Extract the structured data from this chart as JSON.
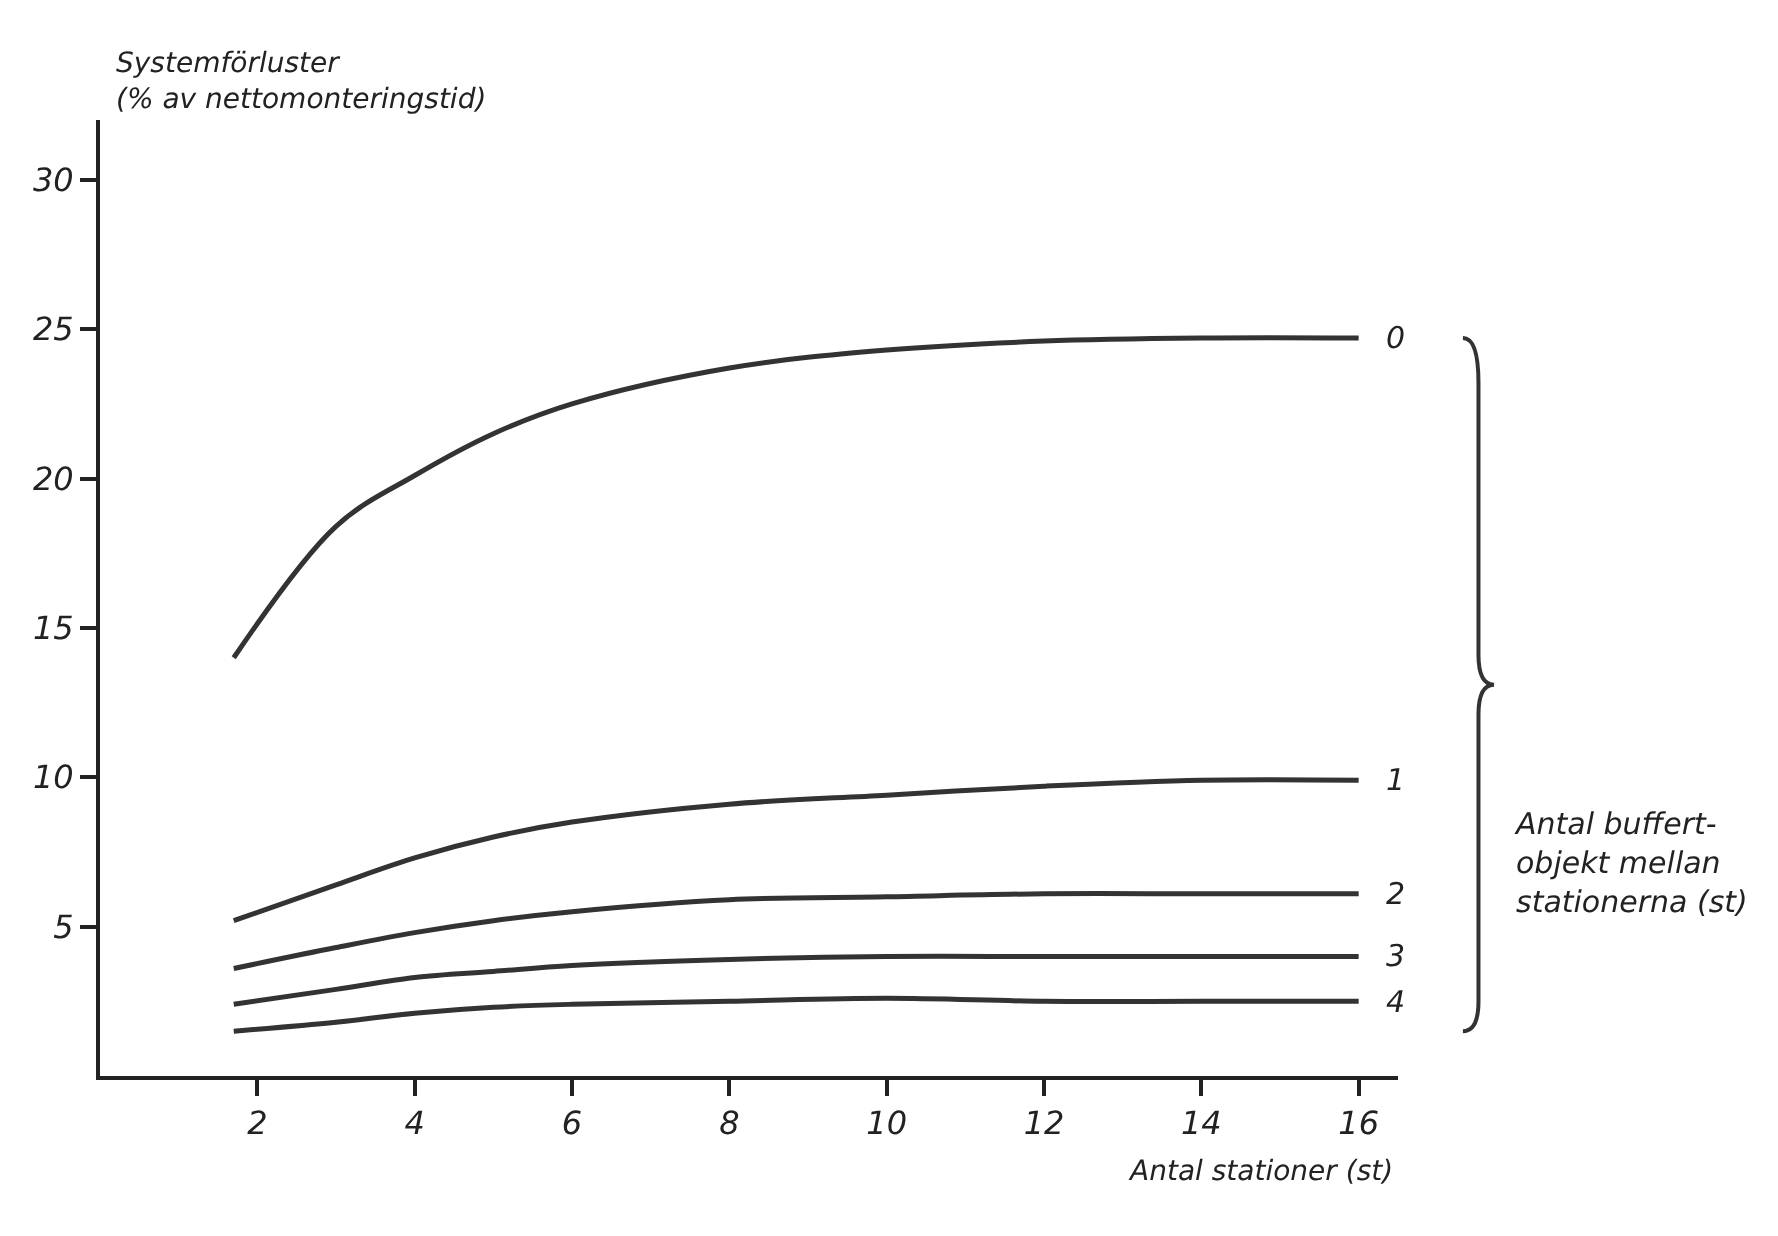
{
  "chart_data": {
    "type": "line",
    "xlabel": "Antal stationer (st)",
    "ylabel": "Systemförluster\n(% av nettomonteringstid)",
    "x": [
      1.7,
      3,
      4,
      5,
      6,
      8,
      10,
      12,
      14,
      16
    ],
    "series": [
      {
        "name": "0",
        "color": "#333333",
        "values": [
          14,
          18.4,
          20.1,
          21.5,
          22.5,
          23.7,
          24.3,
          24.6,
          24.7,
          24.7
        ]
      },
      {
        "name": "1",
        "color": "#333333",
        "values": [
          5.2,
          6.4,
          7.3,
          8.0,
          8.5,
          9.1,
          9.4,
          9.7,
          9.9,
          9.9
        ]
      },
      {
        "name": "2",
        "color": "#333333",
        "values": [
          3.6,
          4.3,
          4.8,
          5.2,
          5.5,
          5.9,
          6.0,
          6.1,
          6.1,
          6.1
        ]
      },
      {
        "name": "3",
        "color": "#333333",
        "values": [
          2.4,
          2.9,
          3.3,
          3.5,
          3.7,
          3.9,
          4.0,
          4.0,
          4.0,
          4.0
        ]
      },
      {
        "name": "4",
        "color": "#333333",
        "values": [
          1.5,
          1.8,
          2.1,
          2.3,
          2.4,
          2.5,
          2.6,
          2.5,
          2.5,
          2.5
        ]
      }
    ],
    "annotations": [
      "Antal buffert-\nobjekt mellan\nstationerna (st)"
    ],
    "xlim": [
      0,
      16.5
    ],
    "ylim": [
      0,
      32
    ],
    "xticks": [
      2,
      4,
      6,
      8,
      10,
      12,
      14,
      16
    ],
    "yticks": [
      5,
      10,
      15,
      20,
      25,
      30
    ],
    "legend": false,
    "marker": "none",
    "line_style": "solid"
  }
}
